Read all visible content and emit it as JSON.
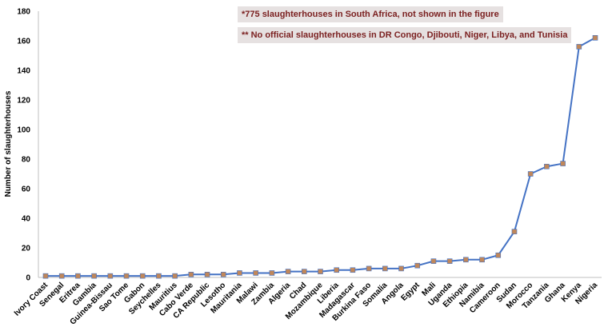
{
  "chart_data": {
    "type": "line",
    "ylabel": "Number of slaughterhouses",
    "xlabel": "",
    "ylim": [
      0,
      180
    ],
    "yticks": [
      0,
      20,
      40,
      60,
      80,
      100,
      120,
      140,
      160,
      180
    ],
    "grid": false,
    "legend": "none",
    "categories": [
      "Ivory Coast",
      "Senegal",
      "Eritrea",
      "Gambia",
      "Guinea-Bissau",
      "Sao Tome",
      "Gabon",
      "Seychelles",
      "Mauritius",
      "Cabo Verde",
      "CA Republic",
      "Lesotho",
      "Mauritania",
      "Malawi",
      "Zambia",
      "Algeria",
      "Chad",
      "Mozambique",
      "Liberia",
      "Madagascar",
      "Burkina Faso",
      "Somalia",
      "Angola",
      "Egypt",
      "Mali",
      "Uganda",
      "Ethiopia",
      "Namibia",
      "Cameroon",
      "Sudan",
      "Morocco",
      "Tanzania",
      "Ghana",
      "Kenya",
      "Nigeria"
    ],
    "series": [
      {
        "values": [
          1,
          1,
          1,
          1,
          1,
          1,
          1,
          1,
          1,
          2,
          2,
          2,
          3,
          3,
          3,
          4,
          4,
          4,
          5,
          5,
          6,
          6,
          6,
          8,
          11,
          11,
          12,
          12,
          15,
          31,
          70,
          75,
          77,
          156,
          162
        ]
      }
    ],
    "annotations": [
      "*775 slaughterhouses in South Africa, not shown in the figure",
      "** No official slaughterhouses in DR Congo, Djibouti, Niger, Libya, and Tunisia"
    ],
    "colors": {
      "line": "#4472c4",
      "marker": "#c0875a",
      "note_text": "#7a1f1f",
      "note_bg": "#e6e1e1"
    }
  }
}
